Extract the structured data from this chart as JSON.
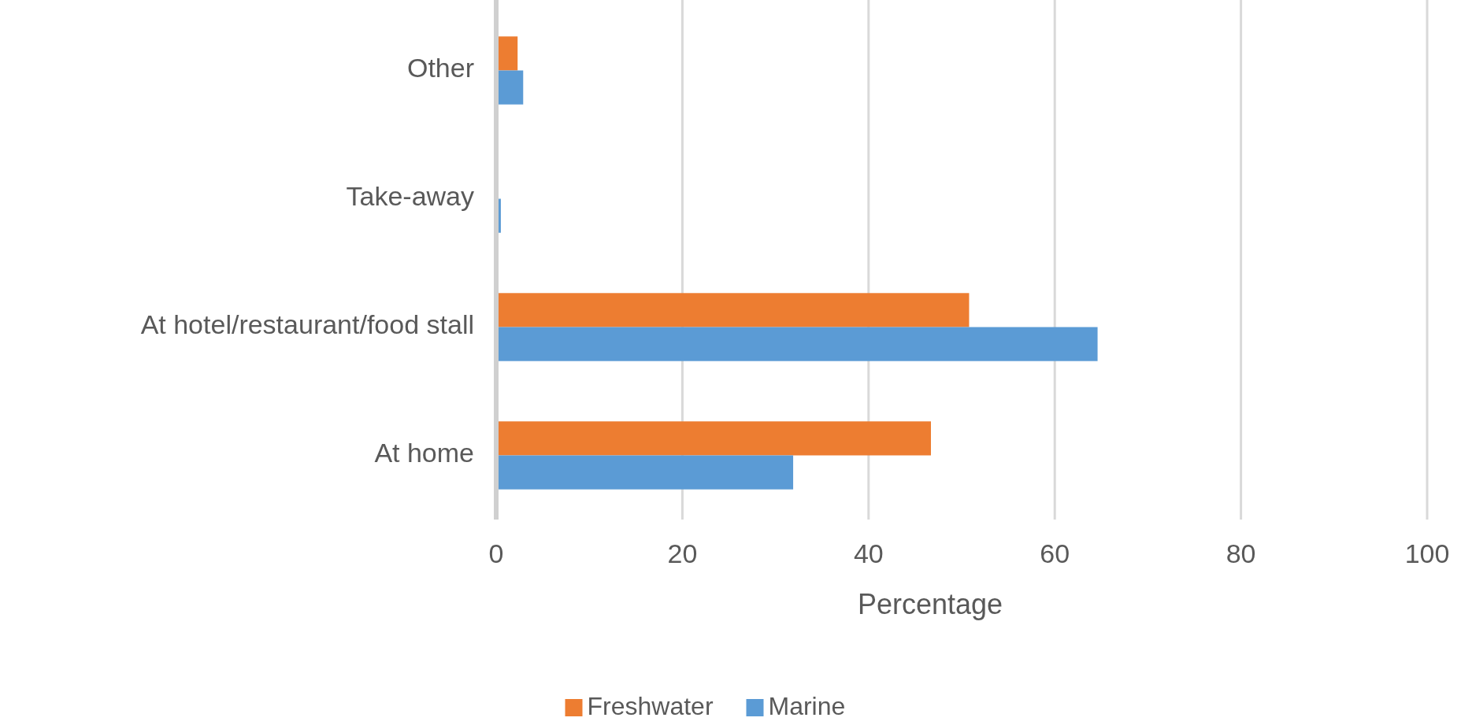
{
  "chart_data": {
    "type": "bar",
    "orientation": "horizontal",
    "xlabel": "Percentage",
    "categories": [
      "Other",
      "Take-away",
      "At hotel/restaurant/food stall",
      "At home"
    ],
    "series": [
      {
        "name": "Freshwater",
        "color": "#ed7d31",
        "values": [
          2.3,
          0,
          50.8,
          46.7
        ]
      },
      {
        "name": "Marine",
        "color": "#5b9bd5",
        "values": [
          2.9,
          0.5,
          64.6,
          31.9
        ]
      }
    ],
    "xlim": [
      0,
      100
    ],
    "xticks": [
      0,
      20,
      40,
      60,
      80,
      100
    ],
    "grid": "x",
    "legend": "bottom"
  }
}
